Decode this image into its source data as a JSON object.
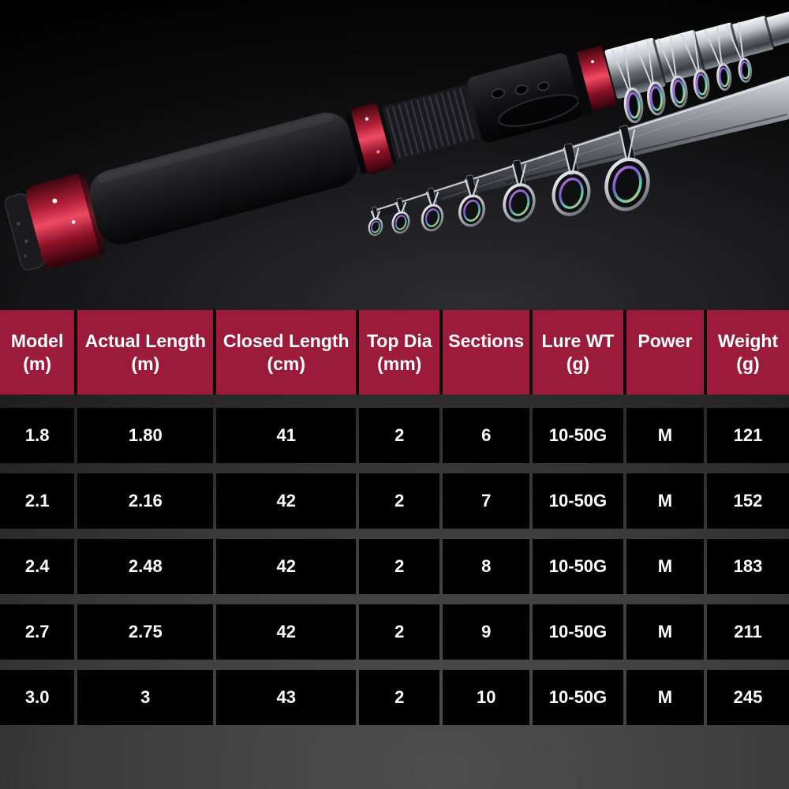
{
  "colors": {
    "header_bg": "#9C1B3B",
    "cell_bg": "#000000",
    "accent_red": "#C81F3C",
    "text": "#FFFFFF",
    "backdrop_gray": "#4E4E4E"
  },
  "table": {
    "columns": [
      {
        "label": "Model",
        "unit": "(m)"
      },
      {
        "label": "Actual Length",
        "unit": "(m)"
      },
      {
        "label": "Closed Length",
        "unit": "(cm)"
      },
      {
        "label": "Top Dia",
        "unit": "(mm)"
      },
      {
        "label": "Sections",
        "unit": ""
      },
      {
        "label": "Lure WT",
        "unit": "(g)"
      },
      {
        "label": "Power",
        "unit": ""
      },
      {
        "label": "Weight",
        "unit": "(g)"
      }
    ],
    "rows": [
      [
        "1.8",
        "1.80",
        "41",
        "2",
        "6",
        "10-50G",
        "M",
        "121"
      ],
      [
        "2.1",
        "2.16",
        "42",
        "2",
        "7",
        "10-50G",
        "M",
        "152"
      ],
      [
        "2.4",
        "2.48",
        "42",
        "2",
        "8",
        "10-50G",
        "M",
        "183"
      ],
      [
        "2.7",
        "2.75",
        "42",
        "2",
        "9",
        "10-50G",
        "M",
        "211"
      ],
      [
        "3.0",
        "3",
        "43",
        "2",
        "10",
        "10-50G",
        "M",
        "245"
      ]
    ]
  },
  "chart_data": {
    "type": "table",
    "title": "",
    "columns": [
      "Model (m)",
      "Actual Length (m)",
      "Closed Length (cm)",
      "Top Dia (mm)",
      "Sections",
      "Lure WT (g)",
      "Power",
      "Weight (g)"
    ],
    "rows": [
      [
        "1.8",
        "1.80",
        "41",
        "2",
        "6",
        "10-50G",
        "M",
        "121"
      ],
      [
        "2.1",
        "2.16",
        "42",
        "2",
        "7",
        "10-50G",
        "M",
        "152"
      ],
      [
        "2.4",
        "2.48",
        "42",
        "2",
        "8",
        "10-50G",
        "M",
        "183"
      ],
      [
        "2.7",
        "2.75",
        "42",
        "2",
        "9",
        "10-50G",
        "M",
        "211"
      ],
      [
        "3.0",
        "3",
        "43",
        "2",
        "10",
        "10-50G",
        "M",
        "245"
      ]
    ]
  }
}
